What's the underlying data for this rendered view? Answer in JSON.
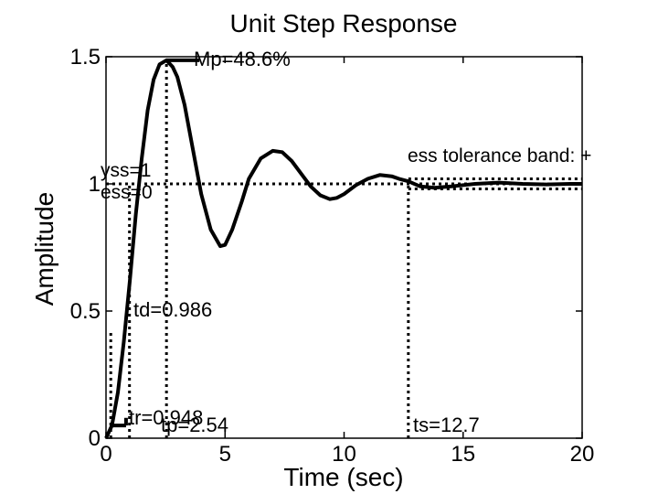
{
  "chart_data": {
    "type": "line",
    "title": "Unit Step Response",
    "xlabel": "Time (sec)",
    "ylabel": "Amplitude",
    "xlim": [
      0,
      20
    ],
    "ylim": [
      0,
      1.5
    ],
    "x_ticks": [
      0,
      5,
      10,
      15,
      20
    ],
    "x_tick_labels": [
      "0",
      "5",
      "10",
      "15",
      "20"
    ],
    "y_ticks": [
      0,
      0.5,
      1,
      1.5
    ],
    "y_tick_labels": [
      "0",
      "0.5",
      "1",
      "1.5"
    ],
    "grid": false,
    "colors": {
      "line": "#000000",
      "background": "#ffffff"
    },
    "series": [
      {
        "x": [
          0,
          0.25,
          0.5,
          0.75,
          1.0,
          1.25,
          1.5,
          1.75,
          2.0,
          2.25,
          2.54,
          2.8,
          3.0,
          3.3,
          3.6,
          4.0,
          4.4,
          4.8,
          5.0,
          5.3,
          5.7,
          6.0,
          6.5,
          7.0,
          7.4,
          7.8,
          8.2,
          8.6,
          9.0,
          9.4,
          9.7,
          10.0,
          10.5,
          11.0,
          11.5,
          12.0,
          12.3,
          12.7,
          13.2,
          13.8,
          14.5,
          15.5,
          16.5,
          17.5,
          18.5,
          19.5,
          20.0
        ],
        "values": [
          0,
          0.05,
          0.18,
          0.38,
          0.62,
          0.88,
          1.1,
          1.29,
          1.41,
          1.47,
          1.486,
          1.46,
          1.42,
          1.31,
          1.16,
          0.96,
          0.82,
          0.755,
          0.76,
          0.82,
          0.93,
          1.02,
          1.1,
          1.13,
          1.125,
          1.09,
          1.04,
          0.99,
          0.955,
          0.94,
          0.945,
          0.96,
          0.995,
          1.02,
          1.035,
          1.03,
          1.02,
          1.01,
          0.99,
          0.985,
          0.99,
          1.0,
          1.005,
          1.0,
          0.998,
          1.0,
          1.0
        ]
      }
    ],
    "annotations": [
      {
        "label": "Mp=48.6%",
        "x": 2.54,
        "y": 1.486
      },
      {
        "label": "yss=1",
        "x": 0,
        "y": 1
      },
      {
        "label": "ess=0",
        "x": 0,
        "y": 1
      },
      {
        "label": "td=0.986",
        "x": 0.986,
        "y": 0.5
      },
      {
        "label": "tr=0.948",
        "x": 0.948,
        "y": 0.9
      },
      {
        "label": "tp=2.54",
        "x": 2.54,
        "y": 1.486
      },
      {
        "label": "ts=12.7",
        "x": 12.7,
        "y": 1.02
      },
      {
        "label": "ess tolerance band: +",
        "x": 12.7,
        "y": 1.02
      }
    ],
    "markers": {
      "yss": 1,
      "td": 0.986,
      "tr": 0.948,
      "tr_start": 0.2,
      "tr_end": 1.148,
      "tp": 2.54,
      "mp_peak": 1.486,
      "ts": 12.7,
      "band": [
        0.98,
        1.02
      ]
    }
  }
}
